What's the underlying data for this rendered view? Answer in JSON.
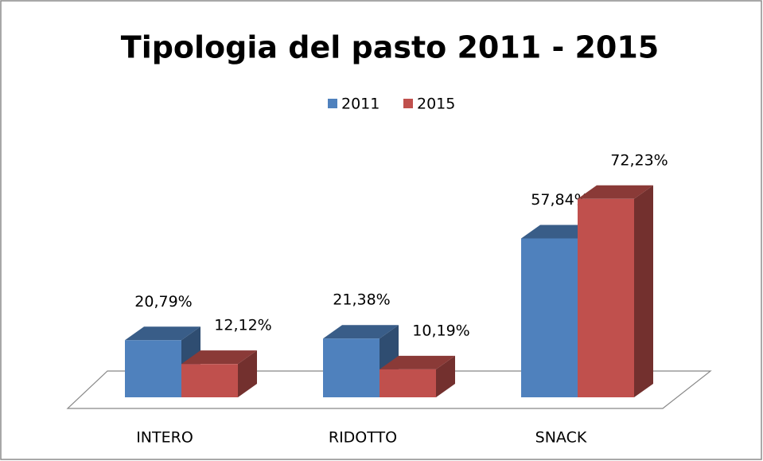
{
  "chart_data": {
    "type": "bar3d",
    "title": "Tipologia del pasto 2011 - 2015",
    "categories": [
      "INTERO",
      "RIDOTTO",
      "SNACK"
    ],
    "series": [
      {
        "name": "2011",
        "color": "#4f81bd",
        "values": [
          20.79,
          21.38,
          57.84
        ],
        "value_labels": [
          "20,79%",
          "21,38%",
          "57,84%"
        ]
      },
      {
        "name": "2015",
        "color": "#c0504d",
        "values": [
          12.12,
          10.19,
          72.23
        ],
        "value_labels": [
          "12,12%",
          "10,19%",
          "72,23%"
        ]
      }
    ],
    "legend": "top"
  }
}
